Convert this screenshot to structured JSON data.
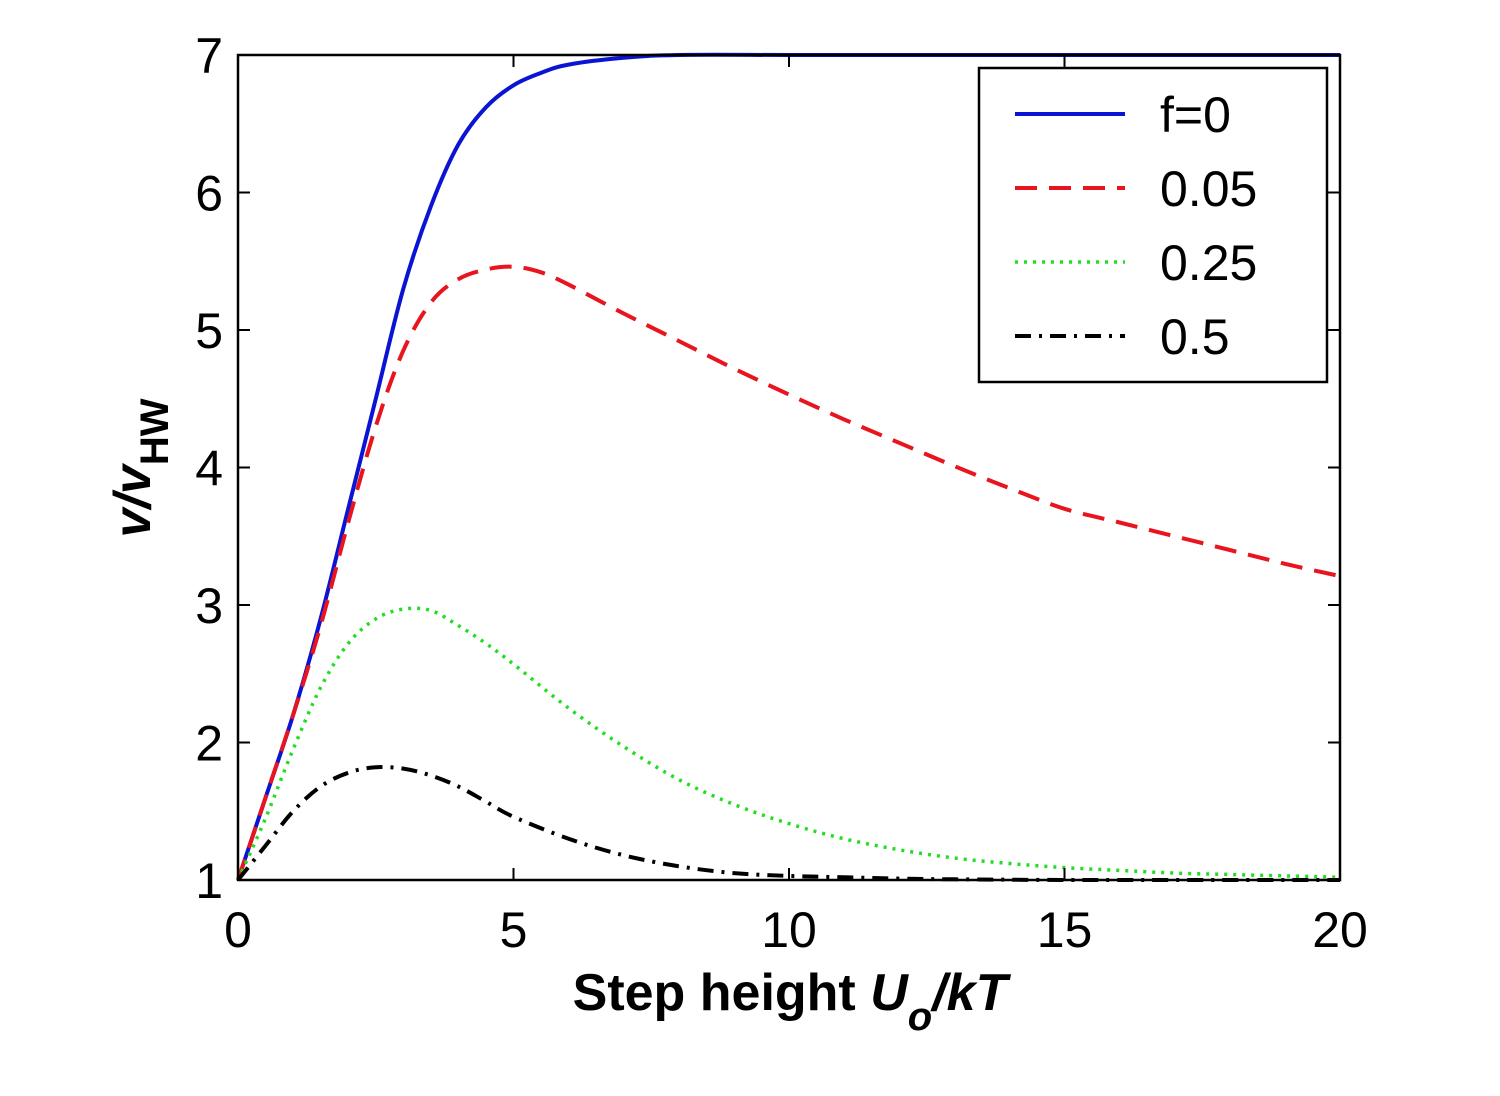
{
  "chart_data": {
    "type": "line",
    "title": "",
    "xlabel_parts": [
      "Step height ",
      "U",
      "o",
      "/kT"
    ],
    "ylabel_parts": [
      "v/v",
      "HW"
    ],
    "xlim": [
      0,
      20
    ],
    "ylim": [
      1,
      7
    ],
    "xticks": [
      0,
      5,
      10,
      15,
      20
    ],
    "yticks": [
      1,
      2,
      3,
      4,
      5,
      6,
      7
    ],
    "grid": false,
    "legend_position": "top-right",
    "series": [
      {
        "name": "f=0",
        "color": "#0a14d2",
        "style": "solid",
        "x": [
          0,
          0.5,
          1,
          1.5,
          2,
          2.5,
          3,
          3.5,
          4,
          4.5,
          5,
          5.5,
          6,
          7,
          8,
          10,
          12,
          15,
          20
        ],
        "y": [
          1,
          1.6,
          2.2,
          2.9,
          3.7,
          4.5,
          5.3,
          5.9,
          6.35,
          6.62,
          6.78,
          6.87,
          6.93,
          6.98,
          7,
          7,
          7,
          7,
          7
        ]
      },
      {
        "name": "0.05",
        "color": "#e8141e",
        "style": "dashed",
        "x": [
          0,
          0.5,
          1,
          1.5,
          2,
          2.5,
          3,
          3.5,
          4,
          4.5,
          5,
          5.5,
          6,
          7,
          8,
          9,
          10,
          11,
          12,
          13,
          14,
          15,
          16,
          17,
          18,
          19,
          20
        ],
        "y": [
          1,
          1.6,
          2.2,
          2.85,
          3.6,
          4.3,
          4.85,
          5.2,
          5.37,
          5.44,
          5.46,
          5.42,
          5.33,
          5.12,
          4.92,
          4.72,
          4.53,
          4.35,
          4.18,
          4.01,
          3.85,
          3.7,
          3.6,
          3.5,
          3.4,
          3.3,
          3.21
        ]
      },
      {
        "name": "0.25",
        "color": "#22dd22",
        "style": "dotted",
        "x": [
          0,
          0.5,
          1,
          1.5,
          2,
          2.5,
          3,
          3.5,
          4,
          4.5,
          5,
          6,
          7,
          8,
          9,
          10,
          11,
          12,
          13,
          14,
          15,
          16,
          17,
          18,
          19,
          20
        ],
        "y": [
          1,
          1.45,
          1.95,
          2.4,
          2.72,
          2.9,
          2.97,
          2.96,
          2.85,
          2.72,
          2.57,
          2.25,
          1.97,
          1.73,
          1.55,
          1.41,
          1.3,
          1.22,
          1.16,
          1.12,
          1.09,
          1.07,
          1.05,
          1.04,
          1.03,
          1.02
        ]
      },
      {
        "name": "0.5",
        "color": "#000000",
        "style": "dashdot",
        "x": [
          0,
          0.5,
          1,
          1.5,
          2,
          2.5,
          3,
          3.5,
          4,
          4.5,
          5,
          6,
          7,
          8,
          9,
          10,
          11,
          12,
          13,
          15,
          17,
          20
        ],
        "y": [
          1,
          1.25,
          1.5,
          1.68,
          1.78,
          1.82,
          1.81,
          1.76,
          1.68,
          1.57,
          1.46,
          1.3,
          1.18,
          1.1,
          1.05,
          1.03,
          1.02,
          1.01,
          1.005,
          1,
          1,
          1
        ]
      }
    ]
  }
}
